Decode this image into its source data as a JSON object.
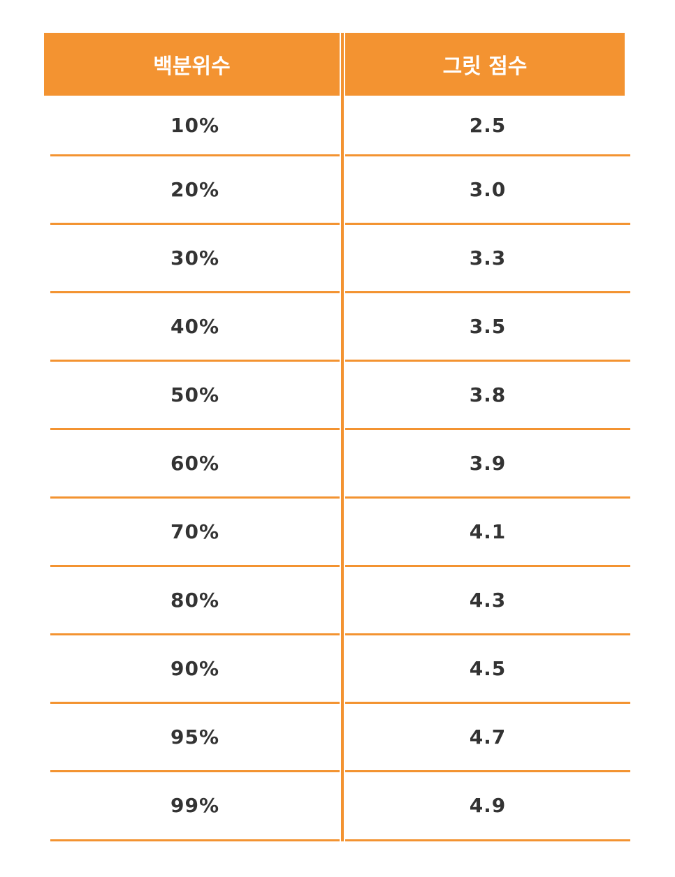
{
  "table": {
    "headers": [
      "백분위수",
      "그릿 점수"
    ],
    "rows": [
      [
        "10%",
        "2.5"
      ],
      [
        "20%",
        "3.0"
      ],
      [
        "30%",
        "3.3"
      ],
      [
        "40%",
        "3.5"
      ],
      [
        "50%",
        "3.8"
      ],
      [
        "60%",
        "3.9"
      ],
      [
        "70%",
        "4.1"
      ],
      [
        "80%",
        "4.3"
      ],
      [
        "90%",
        "4.5"
      ],
      [
        "95%",
        "4.7"
      ],
      [
        "99%",
        "4.9"
      ]
    ]
  },
  "colors": {
    "accent": "#f39331",
    "text": "#333333",
    "header_text": "#ffffff"
  }
}
